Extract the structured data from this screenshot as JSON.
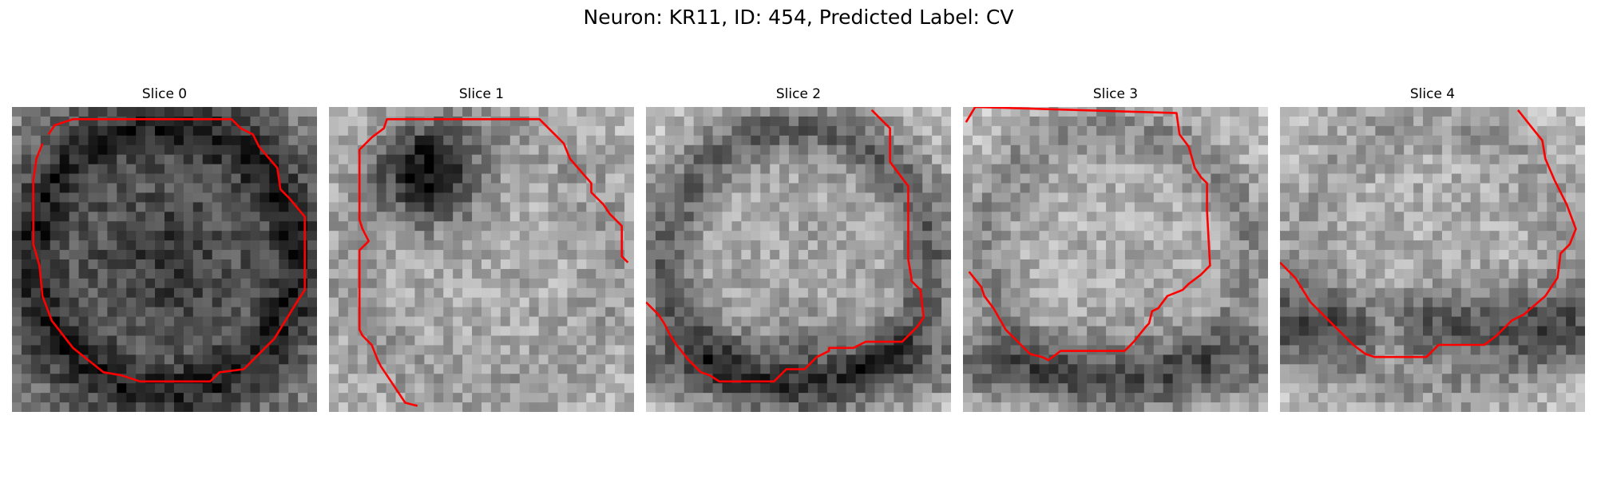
{
  "figure": {
    "title": "Neuron: KR11, ID: 454, Predicted Label: CV",
    "contour_color": "#ff0000",
    "colormap": "gray",
    "panels": [
      {
        "title": "Slice 0",
        "texture": {
          "base": 95,
          "dark_center": 0.15,
          "ring": 0.55,
          "bright_corners": 0.6,
          "seed": 11
        },
        "contour": [
          [
            0.1,
            0.12
          ],
          [
            0.08,
            0.17
          ],
          [
            0.07,
            0.24
          ],
          [
            0.07,
            0.45
          ],
          [
            0.09,
            0.52
          ],
          [
            0.1,
            0.62
          ],
          [
            0.13,
            0.7
          ],
          [
            0.2,
            0.79
          ],
          [
            0.3,
            0.87
          ],
          [
            0.36,
            0.88
          ],
          [
            0.42,
            0.9
          ],
          [
            0.65,
            0.9
          ],
          [
            0.68,
            0.87
          ],
          [
            0.76,
            0.86
          ],
          [
            0.82,
            0.8
          ],
          [
            0.86,
            0.76
          ],
          [
            0.94,
            0.63
          ],
          [
            0.96,
            0.6
          ],
          [
            0.96,
            0.36
          ],
          [
            0.91,
            0.3
          ],
          [
            0.88,
            0.27
          ],
          [
            0.87,
            0.2
          ],
          [
            0.81,
            0.13
          ],
          [
            0.79,
            0.09
          ],
          [
            0.75,
            0.07
          ],
          [
            0.72,
            0.04
          ],
          [
            0.2,
            0.04
          ],
          [
            0.14,
            0.06
          ],
          [
            0.12,
            0.09
          ]
        ]
      },
      {
        "title": "Slice 1",
        "texture": {
          "base": 170,
          "dark_center": 0,
          "ring": 0.15,
          "bright_corners": 0.2,
          "dark_spot": [
            0.33,
            0.22,
            0.16
          ],
          "seed": 22
        },
        "contour": [
          [
            0.29,
            0.98
          ],
          [
            0.25,
            0.97
          ],
          [
            0.19,
            0.88
          ],
          [
            0.17,
            0.85
          ],
          [
            0.16,
            0.83
          ],
          [
            0.14,
            0.78
          ],
          [
            0.11,
            0.75
          ],
          [
            0.1,
            0.73
          ],
          [
            0.1,
            0.47
          ],
          [
            0.13,
            0.44
          ],
          [
            0.11,
            0.4
          ],
          [
            0.1,
            0.37
          ],
          [
            0.1,
            0.14
          ],
          [
            0.14,
            0.1
          ],
          [
            0.18,
            0.07
          ],
          [
            0.19,
            0.04
          ],
          [
            0.69,
            0.04
          ],
          [
            0.75,
            0.1
          ],
          [
            0.77,
            0.12
          ],
          [
            0.79,
            0.17
          ],
          [
            0.86,
            0.25
          ],
          [
            0.86,
            0.28
          ],
          [
            0.9,
            0.32
          ],
          [
            0.92,
            0.35
          ],
          [
            0.96,
            0.39
          ],
          [
            0.96,
            0.49
          ],
          [
            0.98,
            0.51
          ]
        ]
      },
      {
        "title": "Slice 2",
        "texture": {
          "base": 165,
          "dark_center": 0,
          "ring": 0.6,
          "bright_corners": 0.5,
          "dark_bottom": 0.5,
          "seed": 33
        },
        "contour": [
          [
            0.0,
            0.64
          ],
          [
            0.04,
            0.68
          ],
          [
            0.06,
            0.71
          ],
          [
            0.08,
            0.75
          ],
          [
            0.1,
            0.78
          ],
          [
            0.14,
            0.83
          ],
          [
            0.18,
            0.87
          ],
          [
            0.21,
            0.88
          ],
          [
            0.24,
            0.9
          ],
          [
            0.42,
            0.9
          ],
          [
            0.46,
            0.86
          ],
          [
            0.52,
            0.86
          ],
          [
            0.56,
            0.82
          ],
          [
            0.6,
            0.8
          ],
          [
            0.6,
            0.79
          ],
          [
            0.68,
            0.79
          ],
          [
            0.72,
            0.77
          ],
          [
            0.84,
            0.77
          ],
          [
            0.89,
            0.72
          ],
          [
            0.91,
            0.69
          ],
          [
            0.9,
            0.6
          ],
          [
            0.87,
            0.57
          ],
          [
            0.87,
            0.56
          ],
          [
            0.86,
            0.5
          ],
          [
            0.86,
            0.26
          ],
          [
            0.8,
            0.18
          ],
          [
            0.8,
            0.07
          ],
          [
            0.77,
            0.04
          ],
          [
            0.74,
            0.01
          ]
        ]
      },
      {
        "title": "Slice 3",
        "texture": {
          "base": 175,
          "dark_center": 0,
          "ring": 0.35,
          "bright_corners": 0.3,
          "dark_bottom": 0.55,
          "seed": 44
        },
        "contour": [
          [
            0.02,
            0.54
          ],
          [
            0.06,
            0.59
          ],
          [
            0.07,
            0.62
          ],
          [
            0.1,
            0.66
          ],
          [
            0.14,
            0.73
          ],
          [
            0.19,
            0.78
          ],
          [
            0.22,
            0.81
          ],
          [
            0.26,
            0.82
          ],
          [
            0.28,
            0.83
          ],
          [
            0.32,
            0.8
          ],
          [
            0.53,
            0.8
          ],
          [
            0.56,
            0.77
          ],
          [
            0.6,
            0.72
          ],
          [
            0.61,
            0.71
          ],
          [
            0.62,
            0.67
          ],
          [
            0.64,
            0.66
          ],
          [
            0.67,
            0.62
          ],
          [
            0.72,
            0.6
          ],
          [
            0.74,
            0.58
          ],
          [
            0.78,
            0.55
          ],
          [
            0.81,
            0.52
          ],
          [
            0.8,
            0.34
          ],
          [
            0.8,
            0.25
          ],
          [
            0.78,
            0.23
          ],
          [
            0.76,
            0.2
          ],
          [
            0.74,
            0.13
          ],
          [
            0.71,
            0.09
          ],
          [
            0.7,
            0.02
          ],
          [
            0.04,
            0.0
          ],
          [
            0.01,
            0.05
          ]
        ]
      },
      {
        "title": "Slice 4",
        "texture": {
          "base": 175,
          "dark_center": 0,
          "ring": 0.2,
          "bright_corners": 0.3,
          "dark_lower_band": 0.7,
          "seed": 55
        },
        "contour": [
          [
            0.0,
            0.51
          ],
          [
            0.05,
            0.56
          ],
          [
            0.1,
            0.64
          ],
          [
            0.17,
            0.71
          ],
          [
            0.2,
            0.74
          ],
          [
            0.24,
            0.78
          ],
          [
            0.28,
            0.81
          ],
          [
            0.31,
            0.82
          ],
          [
            0.48,
            0.82
          ],
          [
            0.52,
            0.78
          ],
          [
            0.67,
            0.78
          ],
          [
            0.71,
            0.75
          ],
          [
            0.74,
            0.72
          ],
          [
            0.76,
            0.7
          ],
          [
            0.8,
            0.68
          ],
          [
            0.87,
            0.62
          ],
          [
            0.91,
            0.56
          ],
          [
            0.92,
            0.48
          ],
          [
            0.95,
            0.45
          ],
          [
            0.97,
            0.4
          ],
          [
            0.94,
            0.32
          ],
          [
            0.9,
            0.24
          ],
          [
            0.87,
            0.17
          ],
          [
            0.86,
            0.11
          ],
          [
            0.82,
            0.06
          ],
          [
            0.78,
            0.01
          ]
        ]
      }
    ]
  }
}
